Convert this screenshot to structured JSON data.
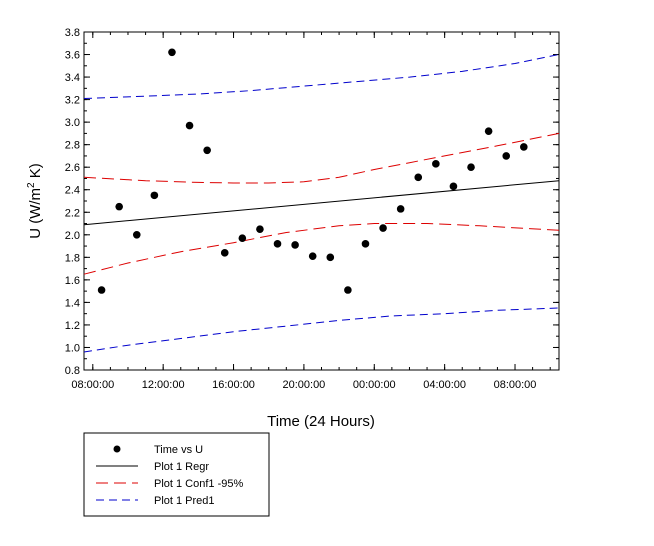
{
  "chart_data": {
    "type": "scatter",
    "xlabel": "Time (24 Hours)",
    "ylabel": "U (W/m",
    "ylabel_sup": "2",
    "ylabel_tail": " K)",
    "x_unit": "hours",
    "xlim": [
      7.5,
      34.5
    ],
    "ylim": [
      0.8,
      3.8
    ],
    "x_ticks": [
      {
        "value": 8,
        "label": "08:00:00"
      },
      {
        "value": 12,
        "label": "12:00:00"
      },
      {
        "value": 16,
        "label": "16:00:00"
      },
      {
        "value": 20,
        "label": "20:00:00"
      },
      {
        "value": 24,
        "label": "00:00:00"
      },
      {
        "value": 28,
        "label": "04:00:00"
      },
      {
        "value": 32,
        "label": "08:00:00"
      }
    ],
    "y_ticks": [
      {
        "value": 0.8,
        "label": "0.8"
      },
      {
        "value": 1.0,
        "label": "1.0"
      },
      {
        "value": 1.2,
        "label": "1.2"
      },
      {
        "value": 1.4,
        "label": "1.4"
      },
      {
        "value": 1.6,
        "label": "1.6"
      },
      {
        "value": 1.8,
        "label": "1.8"
      },
      {
        "value": 2.0,
        "label": "2.0"
      },
      {
        "value": 2.2,
        "label": "2.2"
      },
      {
        "value": 2.4,
        "label": "2.4"
      },
      {
        "value": 2.6,
        "label": "2.6"
      },
      {
        "value": 2.8,
        "label": "2.8"
      },
      {
        "value": 3.0,
        "label": "3.0"
      },
      {
        "value": 3.2,
        "label": "3.2"
      },
      {
        "value": 3.4,
        "label": "3.4"
      },
      {
        "value": 3.6,
        "label": "3.6"
      },
      {
        "value": 3.8,
        "label": "3.8"
      }
    ],
    "x_minor_step": 1,
    "y_minor_step": 0.1,
    "grid": false,
    "legend_position": "bottom-left, below plot",
    "series": [
      {
        "name": "Time vs U",
        "kind": "scatter",
        "color": "#000000",
        "points": [
          [
            8.5,
            1.51
          ],
          [
            9.5,
            2.25
          ],
          [
            10.5,
            2.0
          ],
          [
            11.5,
            2.35
          ],
          [
            12.5,
            3.62
          ],
          [
            13.5,
            2.97
          ],
          [
            14.5,
            2.75
          ],
          [
            15.5,
            1.84
          ],
          [
            16.5,
            1.97
          ],
          [
            17.5,
            2.05
          ],
          [
            18.5,
            1.92
          ],
          [
            19.5,
            1.91
          ],
          [
            20.5,
            1.81
          ],
          [
            21.5,
            1.8
          ],
          [
            22.5,
            1.51
          ],
          [
            23.5,
            1.92
          ],
          [
            24.5,
            2.06
          ],
          [
            25.5,
            2.23
          ],
          [
            26.5,
            2.51
          ],
          [
            27.5,
            2.63
          ],
          [
            28.5,
            2.43
          ],
          [
            29.5,
            2.6
          ],
          [
            30.5,
            2.92
          ],
          [
            31.5,
            2.7
          ],
          [
            32.5,
            2.78
          ]
        ]
      },
      {
        "name": "Plot 1 Regr",
        "kind": "line",
        "color": "#000000",
        "dash": "solid",
        "points": [
          [
            7.5,
            2.09
          ],
          [
            34.5,
            2.48
          ]
        ]
      },
      {
        "name": "Plot 1 Conf1 -95%",
        "kind": "line",
        "color": "#dd0000",
        "dash": "long",
        "points": [
          [
            7.5,
            2.51
          ],
          [
            11,
            2.48
          ],
          [
            14,
            2.465
          ],
          [
            16,
            2.46
          ],
          [
            18,
            2.46
          ],
          [
            20,
            2.47
          ],
          [
            22,
            2.51
          ],
          [
            24,
            2.58
          ],
          [
            26,
            2.64
          ],
          [
            28,
            2.7
          ],
          [
            31,
            2.79
          ],
          [
            34.5,
            2.9
          ]
        ]
      },
      {
        "name": "Plot 1 Conf1 -95% (lower)",
        "kind": "line",
        "color": "#dd0000",
        "dash": "long",
        "legend": false,
        "points": [
          [
            7.5,
            1.65
          ],
          [
            10,
            1.75
          ],
          [
            13,
            1.85
          ],
          [
            16,
            1.93
          ],
          [
            19,
            2.02
          ],
          [
            22,
            2.08
          ],
          [
            24,
            2.1
          ],
          [
            27,
            2.1
          ],
          [
            30,
            2.08
          ],
          [
            34.5,
            2.04
          ]
        ]
      },
      {
        "name": "Plot 1 Pred1",
        "kind": "line",
        "color": "#0000cc",
        "dash": "medium",
        "points": [
          [
            7.5,
            3.21
          ],
          [
            11,
            3.23
          ],
          [
            14,
            3.25
          ],
          [
            17,
            3.28
          ],
          [
            20,
            3.32
          ],
          [
            23,
            3.36
          ],
          [
            26,
            3.4
          ],
          [
            29,
            3.45
          ],
          [
            32,
            3.52
          ],
          [
            34.5,
            3.6
          ]
        ]
      },
      {
        "name": "Plot 1 Pred1 (lower)",
        "kind": "line",
        "color": "#0000cc",
        "dash": "medium",
        "legend": false,
        "points": [
          [
            7.5,
            0.96
          ],
          [
            10,
            1.02
          ],
          [
            13,
            1.08
          ],
          [
            16,
            1.14
          ],
          [
            19,
            1.19
          ],
          [
            22,
            1.24
          ],
          [
            25,
            1.28
          ],
          [
            28,
            1.3
          ],
          [
            31,
            1.33
          ],
          [
            34.5,
            1.35
          ]
        ]
      }
    ],
    "legend": [
      {
        "label": "Time vs U",
        "kind": "marker",
        "color": "#000000",
        "dash": "solid"
      },
      {
        "label": "Plot 1 Regr",
        "kind": "line",
        "color": "#000000",
        "dash": "solid"
      },
      {
        "label": "Plot 1 Conf1 -95%",
        "kind": "line",
        "color": "#dd0000",
        "dash": "long"
      },
      {
        "label": "Plot 1 Pred1",
        "kind": "line",
        "color": "#0000cc",
        "dash": "medium"
      }
    ]
  }
}
